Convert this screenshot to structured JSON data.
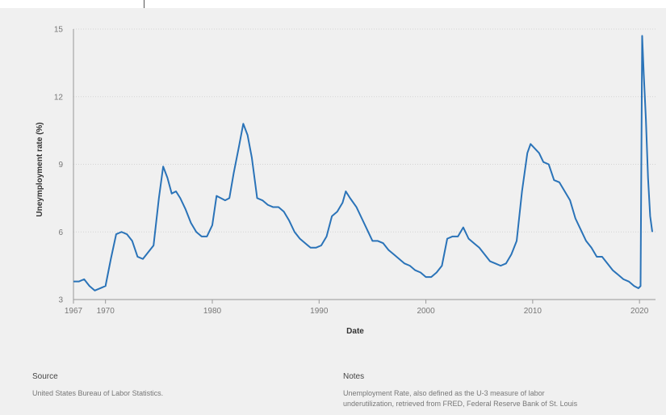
{
  "chart_data": {
    "type": "line",
    "title": "",
    "xlabel": "Date",
    "ylabel": "Uneymployment rate (%)",
    "xlim": [
      1967,
      2021.5
    ],
    "ylim": [
      3,
      15
    ],
    "x_ticks": [
      1967,
      1970,
      1980,
      1990,
      2000,
      2010,
      2020
    ],
    "y_ticks": [
      3,
      6,
      9,
      12,
      15
    ],
    "grid": "horizontal",
    "legend": "none",
    "series": [
      {
        "color": "#2a73b8",
        "x": [
          1967.0,
          1967.5,
          1968.0,
          1968.5,
          1969.0,
          1969.5,
          1970.0,
          1970.5,
          1971.0,
          1971.5,
          1972.0,
          1972.5,
          1973.0,
          1973.5,
          1974.0,
          1974.5,
          1975.0,
          1975.4,
          1975.8,
          1976.2,
          1976.6,
          1977.0,
          1977.5,
          1978.0,
          1978.5,
          1979.0,
          1979.5,
          1980.0,
          1980.4,
          1980.8,
          1981.2,
          1981.6,
          1982.0,
          1982.5,
          1982.9,
          1983.3,
          1983.7,
          1984.2,
          1984.7,
          1985.2,
          1985.7,
          1986.2,
          1986.7,
          1987.2,
          1987.7,
          1988.2,
          1988.7,
          1989.2,
          1989.7,
          1990.2,
          1990.7,
          1991.2,
          1991.7,
          1992.2,
          1992.5,
          1992.9,
          1993.5,
          1994.0,
          1994.5,
          1995.0,
          1995.5,
          1996.0,
          1996.5,
          1997.0,
          1997.5,
          1998.0,
          1998.5,
          1999.0,
          1999.5,
          2000.0,
          2000.5,
          2001.0,
          2001.5,
          2002.0,
          2002.5,
          2003.0,
          2003.5,
          2004.0,
          2004.5,
          2005.0,
          2005.5,
          2006.0,
          2006.5,
          2007.0,
          2007.5,
          2008.0,
          2008.5,
          2009.0,
          2009.5,
          2009.8,
          2010.2,
          2010.6,
          2011.0,
          2011.5,
          2012.0,
          2012.5,
          2013.0,
          2013.5,
          2014.0,
          2014.5,
          2015.0,
          2015.5,
          2016.0,
          2016.5,
          2017.0,
          2017.5,
          2018.0,
          2018.5,
          2019.0,
          2019.5,
          2019.9,
          2020.1,
          2020.25,
          2020.4,
          2020.6,
          2020.8,
          2021.0,
          2021.2
        ],
        "values": [
          3.8,
          3.8,
          3.9,
          3.6,
          3.4,
          3.5,
          3.6,
          4.8,
          5.9,
          6.0,
          5.9,
          5.6,
          4.9,
          4.8,
          5.1,
          5.4,
          7.5,
          8.9,
          8.4,
          7.7,
          7.8,
          7.5,
          7.0,
          6.4,
          6.0,
          5.8,
          5.8,
          6.3,
          7.6,
          7.5,
          7.4,
          7.5,
          8.6,
          9.8,
          10.8,
          10.3,
          9.3,
          7.5,
          7.4,
          7.2,
          7.1,
          7.1,
          6.9,
          6.5,
          6.0,
          5.7,
          5.5,
          5.3,
          5.3,
          5.4,
          5.8,
          6.7,
          6.9,
          7.3,
          7.8,
          7.5,
          7.1,
          6.6,
          6.1,
          5.6,
          5.6,
          5.5,
          5.2,
          5.0,
          4.8,
          4.6,
          4.5,
          4.3,
          4.2,
          4.0,
          4.0,
          4.2,
          4.5,
          5.7,
          5.8,
          5.8,
          6.2,
          5.7,
          5.5,
          5.3,
          5.0,
          4.7,
          4.6,
          4.5,
          4.6,
          5.0,
          5.6,
          7.8,
          9.5,
          9.9,
          9.7,
          9.5,
          9.1,
          9.0,
          8.3,
          8.2,
          7.8,
          7.4,
          6.6,
          6.1,
          5.6,
          5.3,
          4.9,
          4.9,
          4.6,
          4.3,
          4.1,
          3.9,
          3.8,
          3.6,
          3.5,
          3.6,
          14.7,
          13.0,
          11.0,
          8.4,
          6.7,
          6.0
        ]
      }
    ]
  },
  "footer": {
    "source_heading": "Source",
    "source_text": "United States Bureau of Labor Statistics.",
    "notes_heading": "Notes",
    "notes_line1": "Unemployment Rate, also defined as the U-3 measure of labor",
    "notes_line2": "underutilization, retrieved from FRED, Federal Reserve Bank of St. Louis"
  }
}
